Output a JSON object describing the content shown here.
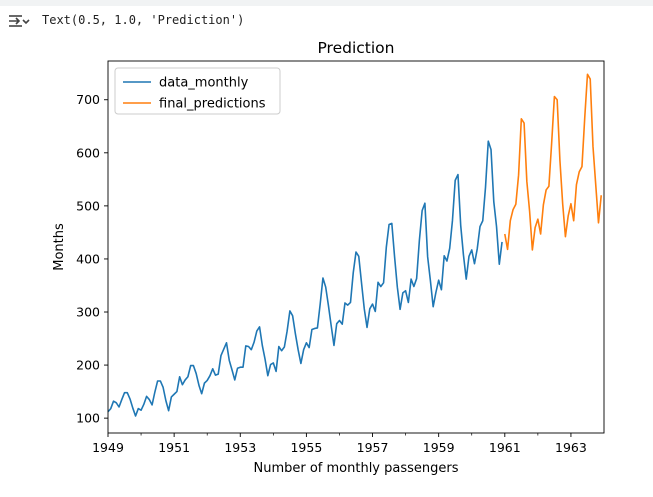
{
  "cell_output": {
    "text": "Text(0.5, 1.0, 'Prediction')",
    "icon": "output-redirect-icon"
  },
  "chart_data": {
    "type": "line",
    "title": "Prediction",
    "xlabel": "Number of monthly passengers",
    "ylabel": "Months",
    "xlim": [
      1949.0,
      1964.0
    ],
    "ylim": [
      72,
      773
    ],
    "x_ticks": [
      1949,
      1951,
      1953,
      1955,
      1957,
      1959,
      1961,
      1963
    ],
    "x_tick_labels": [
      "1949",
      "1951",
      "1953",
      "1955",
      "1957",
      "1959",
      "1961",
      "1963"
    ],
    "y_ticks": [
      100,
      200,
      300,
      400,
      500,
      600,
      700
    ],
    "y_tick_labels": [
      "100",
      "200",
      "300",
      "400",
      "500",
      "600",
      "700"
    ],
    "grid": false,
    "legend_position": "upper-left",
    "series": [
      {
        "name": "data_monthly",
        "color": "#1f77b4",
        "x_start": 1949.0,
        "x_step": 0.0833333,
        "values": [
          112,
          118,
          132,
          129,
          121,
          135,
          148,
          148,
          136,
          119,
          104,
          118,
          115,
          126,
          141,
          135,
          125,
          149,
          170,
          170,
          158,
          133,
          114,
          140,
          145,
          150,
          178,
          163,
          172,
          178,
          199,
          199,
          184,
          162,
          146,
          166,
          171,
          180,
          193,
          181,
          183,
          218,
          230,
          242,
          209,
          191,
          172,
          194,
          196,
          196,
          236,
          235,
          229,
          243,
          264,
          272,
          237,
          211,
          180,
          201,
          204,
          188,
          235,
          227,
          234,
          264,
          302,
          293,
          259,
          229,
          203,
          229,
          242,
          233,
          267,
          269,
          270,
          315,
          364,
          347,
          312,
          274,
          237,
          278,
          284,
          277,
          317,
          313,
          318,
          374,
          413,
          405,
          355,
          306,
          271,
          306,
          315,
          301,
          356,
          348,
          355,
          422,
          465,
          467,
          404,
          347,
          305,
          336,
          340,
          318,
          362,
          348,
          363,
          435,
          491,
          505,
          404,
          359,
          310,
          337,
          360,
          342,
          406,
          396,
          420,
          472,
          548,
          559,
          463,
          407,
          362,
          405,
          417,
          391,
          419,
          461,
          472,
          535,
          622,
          606,
          508,
          461,
          390,
          432
        ]
      },
      {
        "name": "final_predictions",
        "color": "#ff7f0e",
        "x_start": 1961.0,
        "x_step": 0.0833333,
        "values": [
          447,
          418,
          472,
          493,
          503,
          558,
          664,
          656,
          546,
          490,
          417,
          459,
          475,
          447,
          502,
          530,
          537,
          618,
          706,
          700,
          586,
          504,
          442,
          481,
          504,
          472,
          540,
          564,
          574,
          665,
          748,
          739,
          612,
          540,
          468,
          520
        ]
      }
    ]
  }
}
